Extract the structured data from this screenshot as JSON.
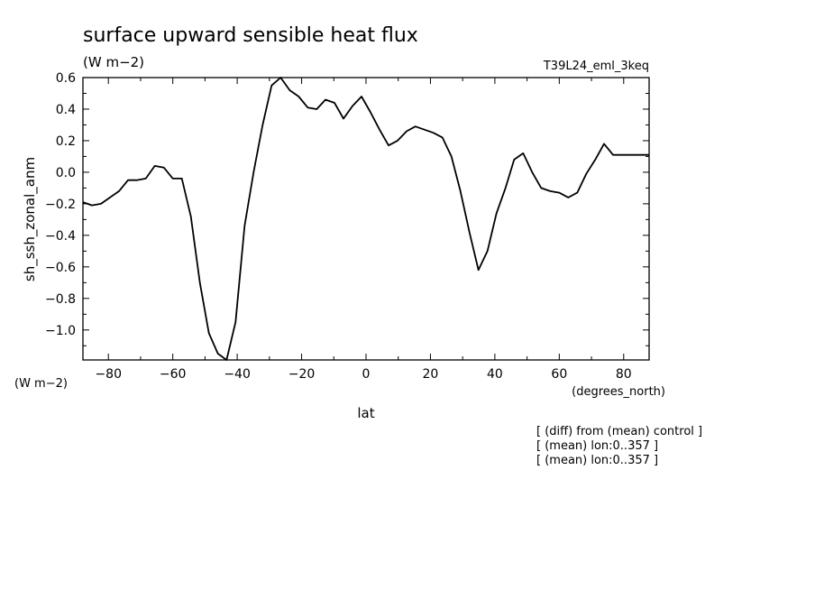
{
  "chart_data": {
    "type": "line",
    "title": "surface upward sensible heat flux",
    "units": "(W m−2)",
    "experiment": "T39L24_eml_3keq",
    "ylabel": "sh_ssh_zonal_anm",
    "xlabel": "lat",
    "x_units": "(degrees_north)",
    "y_units": "(W m−2)",
    "xlim": [
      -87.9,
      87.9
    ],
    "ylim": [
      -1.19,
      0.6
    ],
    "x_ticks": [
      -80,
      -60,
      -40,
      -20,
      0,
      20,
      40,
      60,
      80
    ],
    "x_tick_labels": [
      "−80",
      "−60",
      "−40",
      "−20",
      "0",
      "20",
      "40",
      "60",
      "80"
    ],
    "y_ticks": [
      -1.0,
      -0.8,
      -0.6,
      -0.4,
      -0.2,
      0.0,
      0.2,
      0.4,
      0.6
    ],
    "y_tick_labels": [
      "−1.0",
      "−0.8",
      "−0.6",
      "−0.4",
      "−0.2",
      "0.0",
      "0.2",
      "0.4",
      "0.6"
    ],
    "annotations": [
      "[ (diff) from (mean) control ]",
      "[ (mean) lon:0..357 ]",
      "[ (mean) lon:0..357 ]"
    ],
    "x": [
      -87.9,
      -85.1,
      -82.3,
      -79.5,
      -76.7,
      -73.9,
      -71.2,
      -68.4,
      -65.6,
      -62.8,
      -60.0,
      -57.2,
      -54.4,
      -51.6,
      -48.8,
      -46.0,
      -43.3,
      -40.5,
      -37.7,
      -34.9,
      -32.1,
      -29.3,
      -26.5,
      -23.7,
      -20.9,
      -18.1,
      -15.3,
      -12.6,
      -9.8,
      -7.0,
      -4.2,
      -1.4,
      1.4,
      4.2,
      7.0,
      9.8,
      12.6,
      15.3,
      18.1,
      20.9,
      23.7,
      26.5,
      29.3,
      32.1,
      34.9,
      37.7,
      40.5,
      43.3,
      46.0,
      48.8,
      51.6,
      54.4,
      57.2,
      60.0,
      62.8,
      65.6,
      68.4,
      71.2,
      73.9,
      76.7,
      79.5,
      82.3,
      85.1,
      87.9
    ],
    "y": [
      -0.19,
      -0.21,
      -0.2,
      -0.16,
      -0.12,
      -0.05,
      -0.05,
      -0.04,
      0.04,
      0.03,
      -0.04,
      -0.04,
      -0.28,
      -0.7,
      -1.02,
      -1.15,
      -1.19,
      -0.95,
      -0.34,
      0.0,
      0.3,
      0.55,
      0.6,
      0.52,
      0.48,
      0.41,
      0.4,
      0.46,
      0.44,
      0.34,
      0.42,
      0.48,
      0.38,
      0.27,
      0.17,
      0.2,
      0.26,
      0.29,
      0.27,
      0.25,
      0.22,
      0.1,
      -0.12,
      -0.38,
      -0.62,
      -0.5,
      -0.26,
      -0.1,
      0.08,
      0.12,
      0.0,
      -0.1,
      -0.12,
      -0.13,
      -0.16,
      -0.13,
      -0.01,
      0.08,
      0.18,
      0.11,
      0.11,
      0.11,
      0.11,
      0.11
    ]
  }
}
